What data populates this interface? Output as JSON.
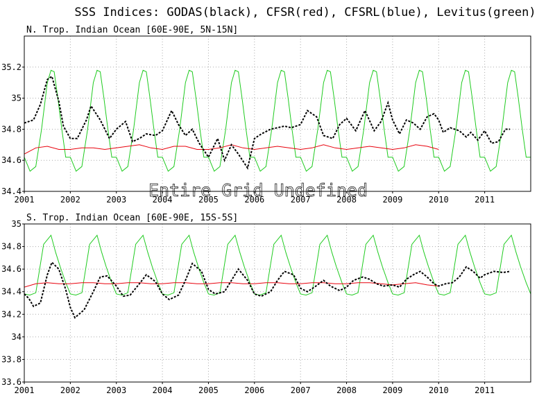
{
  "title": "SSS Indices: GODAS(black), CFSR(red), CFSRL(blue), Levitus(green)",
  "colors": {
    "godas": "#000000",
    "cfsr": "#e8000b",
    "levitus": "#1fcb1f",
    "grid": "#aaaaaa",
    "frame": "#000000"
  },
  "chart_data": [
    {
      "type": "line",
      "title": "N. Trop. Indian Ocean [60E-90E, 5N-15N]",
      "overlay_text": "Entire Grid Undefined",
      "xlabel": "",
      "ylabel": "",
      "xlim": [
        2001.0,
        2012.0
      ],
      "ylim": [
        34.4,
        35.4
      ],
      "x_ticks": [
        "2001",
        "2002",
        "2003",
        "2004",
        "2005",
        "2006",
        "2007",
        "2008",
        "2009",
        "2010",
        "2011"
      ],
      "y_ticks": [
        "34.4",
        "34.6",
        "34.8",
        "35",
        "35.2"
      ],
      "y_tick_values": [
        34.4,
        34.6,
        34.8,
        35.0,
        35.2
      ],
      "grid": true,
      "series": [
        {
          "name": "GODAS",
          "color": "#000000",
          "style": "dashed",
          "x": [
            2001.0,
            2001.2,
            2001.35,
            2001.5,
            2001.6,
            2001.75,
            2001.85,
            2002.0,
            2002.15,
            2002.35,
            2002.45,
            2002.65,
            2002.85,
            2003.0,
            2003.2,
            2003.35,
            2003.5,
            2003.65,
            2003.85,
            2004.0,
            2004.2,
            2004.35,
            2004.5,
            2004.65,
            2004.8,
            2005.0,
            2005.2,
            2005.35,
            2005.5,
            2005.65,
            2005.85,
            2006.0,
            2006.15,
            2006.35,
            2006.5,
            2006.65,
            2006.8,
            2007.0,
            2007.15,
            2007.35,
            2007.5,
            2007.7,
            2007.85,
            2008.0,
            2008.2,
            2008.4,
            2008.6,
            2008.75,
            2008.9,
            2009.0,
            2009.15,
            2009.3,
            2009.45,
            2009.6,
            2009.75,
            2009.9,
            2010.0,
            2010.1,
            2010.25,
            2010.45,
            2010.6,
            2010.7,
            2010.85,
            2011.0,
            2011.15,
            2011.3,
            2011.45,
            2011.55
          ],
          "y": [
            34.84,
            34.86,
            34.96,
            35.12,
            35.14,
            34.98,
            34.82,
            34.74,
            34.74,
            34.86,
            34.95,
            34.86,
            34.74,
            34.8,
            34.85,
            34.72,
            34.74,
            34.77,
            34.76,
            34.79,
            34.92,
            34.83,
            34.76,
            34.8,
            34.71,
            34.62,
            34.74,
            34.6,
            34.7,
            34.64,
            34.55,
            34.74,
            34.77,
            34.8,
            34.81,
            34.82,
            34.81,
            34.83,
            34.92,
            34.88,
            34.76,
            34.74,
            34.83,
            34.87,
            34.79,
            34.92,
            34.79,
            34.85,
            34.97,
            34.86,
            34.77,
            34.86,
            34.84,
            34.8,
            34.88,
            34.9,
            34.86,
            34.78,
            34.81,
            34.79,
            34.75,
            34.78,
            34.73,
            34.79,
            34.71,
            34.72,
            34.8,
            34.8
          ]
        },
        {
          "name": "CFSR",
          "color": "#e8000b",
          "style": "solid",
          "x": [
            2001.0,
            2001.25,
            2001.5,
            2001.75,
            2002.0,
            2002.25,
            2002.5,
            2002.75,
            2003.0,
            2003.25,
            2003.5,
            2003.75,
            2004.0,
            2004.25,
            2004.5,
            2004.75,
            2005.0,
            2005.25,
            2005.5,
            2005.75,
            2006.0,
            2006.25,
            2006.5,
            2006.75,
            2007.0,
            2007.25,
            2007.5,
            2007.75,
            2008.0,
            2008.25,
            2008.5,
            2008.75,
            2009.0,
            2009.25,
            2009.5,
            2009.75,
            2010.0
          ],
          "y": [
            34.64,
            34.68,
            34.69,
            34.67,
            34.67,
            34.68,
            34.68,
            34.67,
            34.68,
            34.69,
            34.7,
            34.68,
            34.67,
            34.69,
            34.69,
            34.67,
            34.67,
            34.68,
            34.7,
            34.68,
            34.67,
            34.68,
            34.69,
            34.68,
            34.67,
            34.68,
            34.7,
            34.68,
            34.67,
            34.68,
            34.69,
            34.68,
            34.67,
            34.68,
            34.7,
            34.69,
            34.67
          ]
        },
        {
          "name": "Levitus",
          "color": "#1fcb1f",
          "style": "solid",
          "climatology": {
            "offsets": [
              0.0,
              0.125,
              0.25,
              0.375,
              0.5,
              0.58,
              0.65,
              0.73,
              0.82,
              0.9,
              1.0
            ],
            "values": [
              34.62,
              34.53,
              34.56,
              34.8,
              35.1,
              35.18,
              35.17,
              35.0,
              34.79,
              34.62,
              34.62
            ]
          }
        }
      ]
    },
    {
      "type": "line",
      "title": "S. Trop. Indian Ocean [60E-90E, 15S-5S]",
      "xlabel": "",
      "ylabel": "",
      "xlim": [
        2001.0,
        2012.0
      ],
      "ylim": [
        33.6,
        35.0
      ],
      "x_ticks": [
        "2001",
        "2002",
        "2003",
        "2004",
        "2005",
        "2006",
        "2007",
        "2008",
        "2009",
        "2010",
        "2011"
      ],
      "y_ticks": [
        "33.6",
        "33.8",
        "34",
        "34.2",
        "34.4",
        "34.6",
        "34.8",
        "35"
      ],
      "y_tick_values": [
        33.6,
        33.8,
        34.0,
        34.2,
        34.4,
        34.6,
        34.8,
        35.0
      ],
      "grid": true,
      "series": [
        {
          "name": "GODAS",
          "color": "#000000",
          "style": "dashed",
          "x": [
            2001.0,
            2001.1,
            2001.2,
            2001.35,
            2001.5,
            2001.6,
            2001.75,
            2001.9,
            2002.0,
            2002.1,
            2002.3,
            2002.5,
            2002.65,
            2002.8,
            2003.0,
            2003.15,
            2003.3,
            2003.5,
            2003.65,
            2003.85,
            2004.0,
            2004.15,
            2004.35,
            2004.5,
            2004.65,
            2004.85,
            2005.0,
            2005.15,
            2005.35,
            2005.5,
            2005.65,
            2005.85,
            2006.0,
            2006.15,
            2006.35,
            2006.5,
            2006.65,
            2006.85,
            2007.0,
            2007.15,
            2007.3,
            2007.5,
            2007.65,
            2007.85,
            2008.0,
            2008.15,
            2008.35,
            2008.5,
            2008.65,
            2008.8,
            2009.0,
            2009.15,
            2009.3,
            2009.45,
            2009.6,
            2009.75,
            2009.9,
            2010.0,
            2010.15,
            2010.3,
            2010.45,
            2010.6,
            2010.75,
            2010.9,
            2011.0,
            2011.2,
            2011.4,
            2011.55
          ],
          "y": [
            34.38,
            34.34,
            34.27,
            34.3,
            34.55,
            34.66,
            34.6,
            34.42,
            34.26,
            34.17,
            34.24,
            34.4,
            34.53,
            34.54,
            34.45,
            34.36,
            34.37,
            34.47,
            34.55,
            34.49,
            34.38,
            34.33,
            34.37,
            34.5,
            34.65,
            34.58,
            34.42,
            34.38,
            34.4,
            34.5,
            34.6,
            34.5,
            34.38,
            34.36,
            34.4,
            34.5,
            34.58,
            34.55,
            34.43,
            34.4,
            34.44,
            34.5,
            34.45,
            34.41,
            34.44,
            34.5,
            34.53,
            34.51,
            34.47,
            34.45,
            34.46,
            34.44,
            34.51,
            34.55,
            34.58,
            34.53,
            34.47,
            34.45,
            34.47,
            34.48,
            34.53,
            34.62,
            34.58,
            34.52,
            34.55,
            34.58,
            34.57,
            34.58
          ]
        },
        {
          "name": "CFSR",
          "color": "#e8000b",
          "style": "solid",
          "x": [
            2001.0,
            2001.25,
            2001.5,
            2001.75,
            2002.0,
            2002.25,
            2002.5,
            2002.75,
            2003.0,
            2003.25,
            2003.5,
            2003.75,
            2004.0,
            2004.25,
            2004.5,
            2004.75,
            2005.0,
            2005.25,
            2005.5,
            2005.75,
            2006.0,
            2006.25,
            2006.5,
            2006.75,
            2007.0,
            2007.25,
            2007.5,
            2007.75,
            2008.0,
            2008.25,
            2008.5,
            2008.75,
            2009.0,
            2009.25,
            2009.5,
            2009.75,
            2010.0
          ],
          "y": [
            34.44,
            34.47,
            34.48,
            34.47,
            34.47,
            34.48,
            34.48,
            34.47,
            34.47,
            34.48,
            34.48,
            34.47,
            34.47,
            34.48,
            34.48,
            34.47,
            34.47,
            34.48,
            34.48,
            34.47,
            34.47,
            34.48,
            34.48,
            34.47,
            34.47,
            34.48,
            34.48,
            34.47,
            34.47,
            34.48,
            34.48,
            34.47,
            34.46,
            34.47,
            34.48,
            34.46,
            34.45
          ]
        },
        {
          "name": "Levitus",
          "color": "#1fcb1f",
          "style": "solid",
          "climatology": {
            "offsets": [
              0.0,
              0.12,
              0.25,
              0.42,
              0.58,
              0.68,
              0.78,
              0.9,
              1.0
            ],
            "values": [
              34.38,
              34.37,
              34.39,
              34.82,
              34.9,
              34.75,
              34.62,
              34.48,
              34.38
            ]
          }
        }
      ]
    }
  ]
}
